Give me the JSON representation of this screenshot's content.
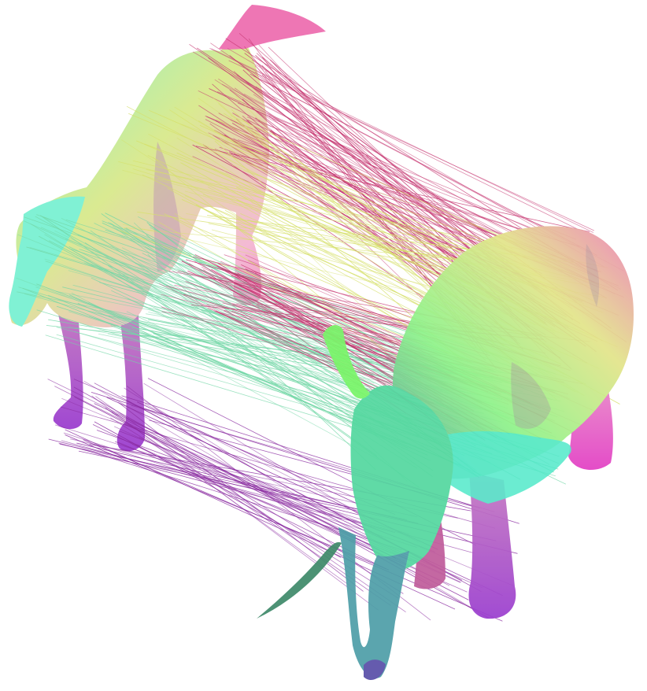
{
  "scene": {
    "background": "#ffffff",
    "palette": {
      "pink": "#ee6fb0",
      "magenta": "#e33fc4",
      "yellow": "#e3e58a",
      "green": "#8ff38a",
      "cyan": "#6ff2cf",
      "purple": "#9b3ecf",
      "violet": "#7a3fa8",
      "teal": "#4fa89a",
      "line_red": "#c5336f",
      "line_yellow": "#d6e06a",
      "line_green": "#72d7a6",
      "line_purple": "#8a2ba0"
    }
  }
}
